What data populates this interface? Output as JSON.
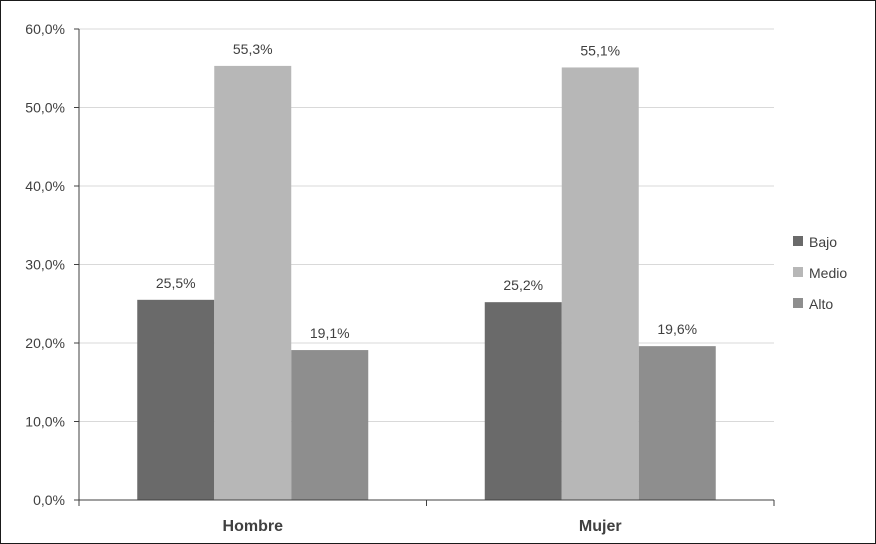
{
  "chart_data": {
    "type": "bar",
    "categories": [
      "Hombre",
      "Mujer"
    ],
    "series": [
      {
        "name": "Bajo",
        "values": [
          25.5,
          25.2
        ],
        "labels": [
          "25,5%",
          "25,2%"
        ],
        "color": "#6a6a6a"
      },
      {
        "name": "Medio",
        "values": [
          55.3,
          55.1
        ],
        "labels": [
          "55,3%",
          "55,1%"
        ],
        "color": "#b7b7b7"
      },
      {
        "name": "Alto",
        "values": [
          19.1,
          19.6
        ],
        "labels": [
          "19,1%",
          "19,6%"
        ],
        "color": "#8e8e8e"
      }
    ],
    "ylim": [
      0,
      60
    ],
    "yticks": [
      0,
      10,
      20,
      30,
      40,
      50,
      60
    ],
    "ytick_labels": [
      "0,0%",
      "10,0%",
      "20,0%",
      "30,0%",
      "40,0%",
      "50,0%",
      "60,0%"
    ],
    "grid": true,
    "legend_position": "right"
  }
}
